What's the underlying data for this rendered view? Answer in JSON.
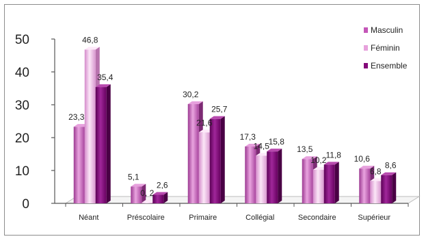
{
  "chart_data": {
    "type": "bar",
    "categories": [
      "Néant",
      "Préscolaire",
      "Primaire",
      "Collégial",
      "Secondaire",
      "Supérieur"
    ],
    "series": [
      {
        "name": "Masculin",
        "values": [
          23.3,
          5.1,
          30.2,
          17.3,
          13.5,
          10.6
        ],
        "labels": [
          "23,3",
          "5,1",
          "30,2",
          "17,3",
          "13,5",
          "10,6"
        ],
        "color": "#c456b8"
      },
      {
        "name": "Féminin",
        "values": [
          46.8,
          0.2,
          21.6,
          14.5,
          10.2,
          6.8
        ],
        "labels": [
          "46,8",
          "0, 2",
          "21,6",
          "14,5",
          "10,2",
          "6,8"
        ],
        "color": "#e7a2dc"
      },
      {
        "name": "Ensemble",
        "values": [
          35.4,
          2.6,
          25.7,
          15.8,
          11.8,
          8.6
        ],
        "labels": [
          "35,4",
          "2,6",
          "25,7",
          "15,8",
          "11,8",
          "8,6"
        ],
        "color": "#840a7a"
      }
    ],
    "ylim": [
      0,
      50
    ],
    "yticks": [
      0,
      10,
      20,
      30,
      40,
      50
    ],
    "grid": false,
    "legend": "top-right",
    "three_d": true
  }
}
